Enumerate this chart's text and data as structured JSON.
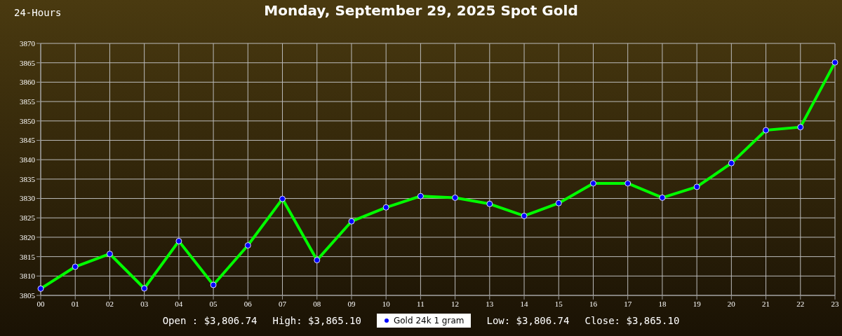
{
  "chart_data": {
    "type": "line",
    "title": "Monday, September 29, 2025 Spot Gold",
    "subtitle": "24-Hours",
    "categories": [
      "00",
      "01",
      "02",
      "03",
      "04",
      "05",
      "06",
      "07",
      "08",
      "09",
      "10",
      "11",
      "12",
      "13",
      "14",
      "15",
      "16",
      "17",
      "18",
      "19",
      "20",
      "21",
      "22",
      "23"
    ],
    "series": [
      {
        "name": "Gold 24k 1 gram",
        "color": "#00ff00",
        "values": [
          3806.74,
          3812.4,
          3815.7,
          3806.8,
          3819.0,
          3807.7,
          3817.9,
          3829.9,
          3814.1,
          3824.1,
          3827.7,
          3830.6,
          3830.2,
          3828.6,
          3825.5,
          3828.8,
          3833.9,
          3833.9,
          3830.2,
          3833.0,
          3839.1,
          3847.6,
          3848.4,
          3865.1
        ]
      }
    ],
    "ylim": [
      3805,
      3870
    ],
    "yticks": [
      3805,
      3810,
      3815,
      3820,
      3825,
      3830,
      3835,
      3840,
      3845,
      3850,
      3855,
      3860,
      3865,
      3870
    ],
    "grid": true,
    "legend": "bottom",
    "marker": "circle",
    "line_style": "solid",
    "annotations": [
      "Open : $3,806.74",
      "High: $3,865.10",
      "Low: $3,806.74",
      "Close: $3,865.10"
    ]
  }
}
